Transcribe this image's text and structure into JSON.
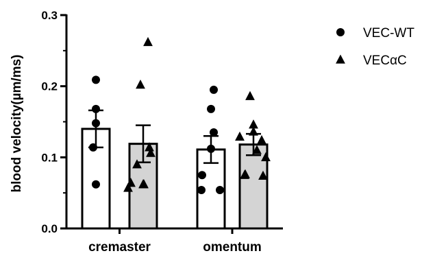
{
  "chart_data": {
    "type": "bar",
    "title": "",
    "xlabel": "",
    "ylabel": "blood velocity(µm/ms)",
    "ylim": [
      0,
      0.3
    ],
    "yticks": [
      "0.0",
      "0.1",
      "0.2",
      "0.3"
    ],
    "grid": false,
    "legend_position": "top-right",
    "categories": [
      "cremaster",
      "omentum"
    ],
    "series": [
      {
        "name": "VEC-WT",
        "marker": "circle",
        "fill": "#ffffff",
        "means": [
          0.14,
          0.111
        ],
        "sem": [
          0.026,
          0.019
        ],
        "points": [
          [
            0.209,
            0.168,
            0.148,
            0.114,
            0.062
          ],
          [
            0.195,
            0.168,
            0.135,
            0.112,
            0.075,
            0.054,
            0.054
          ]
        ]
      },
      {
        "name": "VECαC",
        "marker": "triangle",
        "fill": "#d4d4d4",
        "means": [
          0.119,
          0.118
        ],
        "sem": [
          0.026,
          0.015
        ],
        "points": [
          [
            0.262,
            0.202,
            0.114,
            0.106,
            0.09,
            0.064,
            0.062,
            0.062,
            0.057
          ],
          [
            0.186,
            0.146,
            0.136,
            0.129,
            0.124,
            0.11,
            0.1,
            0.076,
            0.075,
            0.074
          ]
        ]
      }
    ]
  }
}
